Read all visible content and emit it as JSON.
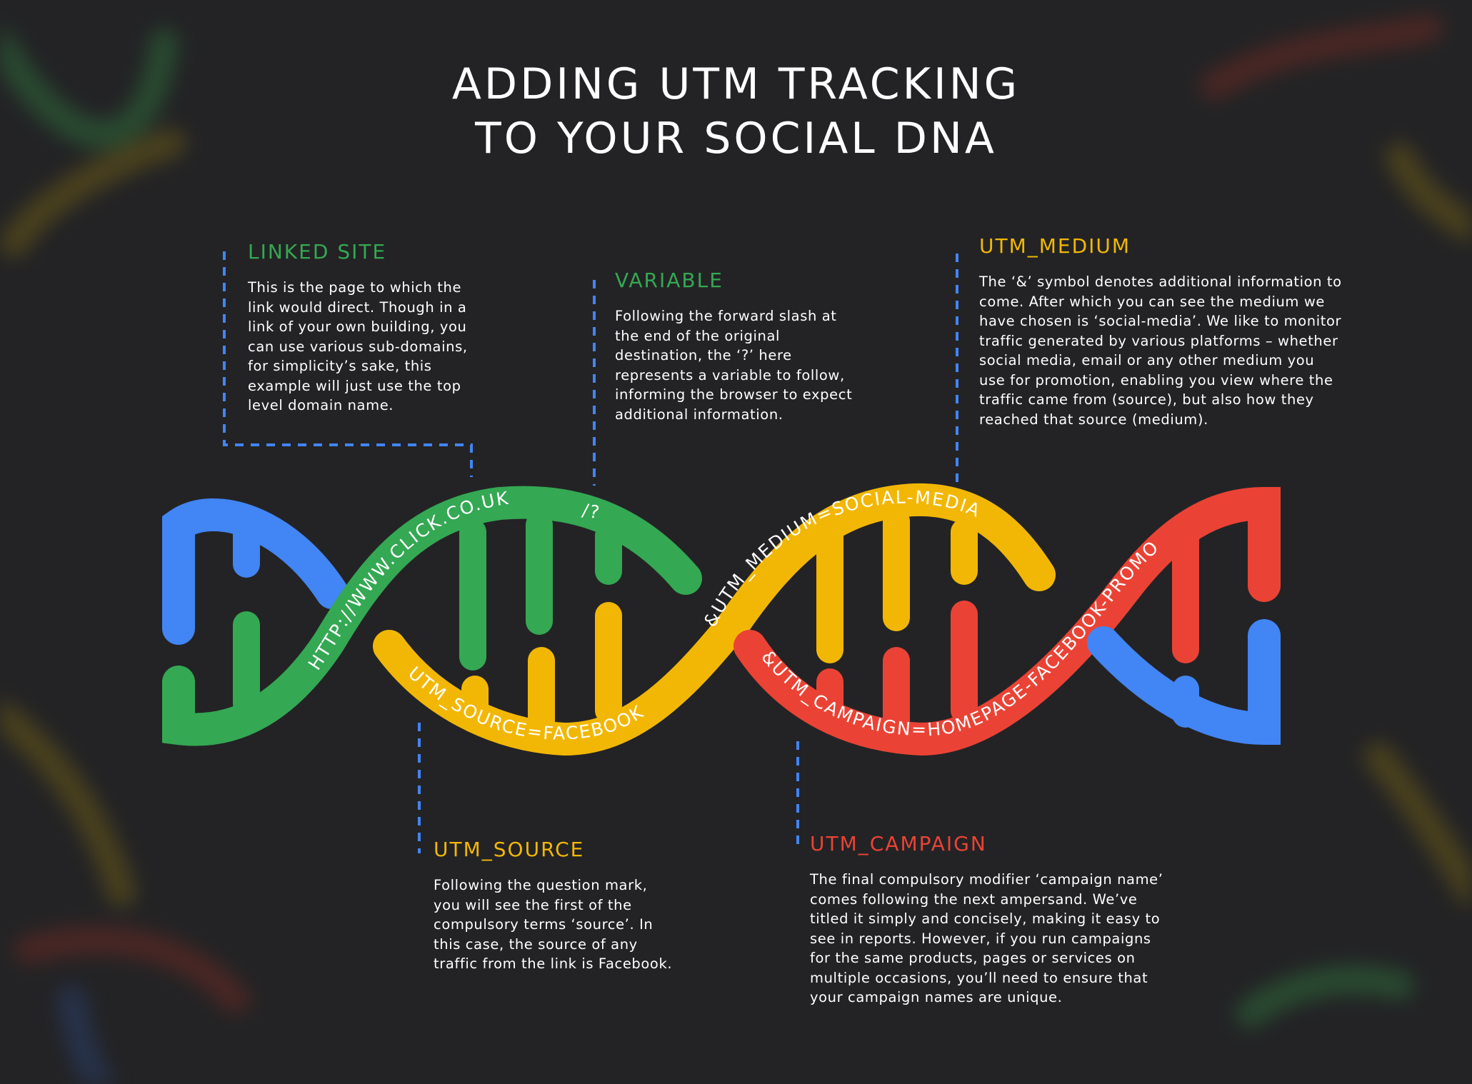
{
  "title": {
    "line1": "ADDING UTM TRACKING",
    "line2": "TO YOUR SOCIAL DNA"
  },
  "colors": {
    "background": "#232325",
    "blue": "#4285f4",
    "green": "#34a853",
    "yellow": "#f2b705",
    "red": "#ea4335",
    "connector": "#4285f4"
  },
  "helix_labels": {
    "linked_site_url": "HTTP://WWW.CLICK.CO.UK",
    "variable_mark": "/?",
    "utm_source": "UTM_SOURCE=FACEBOOK",
    "utm_medium": "&UTM_MEDIUM=SOCIAL-MEDIA",
    "utm_campaign": "&UTM_CAMPAIGN=HOMEPAGE-FACEBOOK-PROMO"
  },
  "sections": {
    "linked_site": {
      "heading": "LINKED SITE",
      "body": "This is the page to which the link would direct. Though in a link of your own building, you can use various sub-domains, for simplicity’s sake, this example will just use the top level domain name."
    },
    "variable": {
      "heading": "VARIABLE",
      "body": "Following the forward slash at the end of the original destination, the ‘?’ here represents a variable to follow, informing the browser to expect additional information."
    },
    "utm_medium": {
      "heading": "UTM_MEDIUM",
      "body": "The ‘&’ symbol denotes additional information to come. After which you can see the medium we have chosen is ‘social-media’. We like to monitor traffic generated by various platforms – whether social media, email or any other medium you use for promotion, enabling you view where the traffic came from (source), but also how they reached that source (medium)."
    },
    "utm_source": {
      "heading": "UTM_SOURCE",
      "body": "Following the question mark, you will see the first of the compulsory terms ‘source’. In this case, the source of any traffic from the link is Facebook."
    },
    "utm_campaign": {
      "heading": "UTM_CAMPAIGN",
      "body": "The final compulsory modifier ‘campaign name’ comes following the next ampersand. We’ve titled it simply and concisely, making it easy to see in reports. However, if you run campaigns for the same products, pages or services on multiple occasions, you’ll need to ensure that your campaign names are unique."
    }
  }
}
